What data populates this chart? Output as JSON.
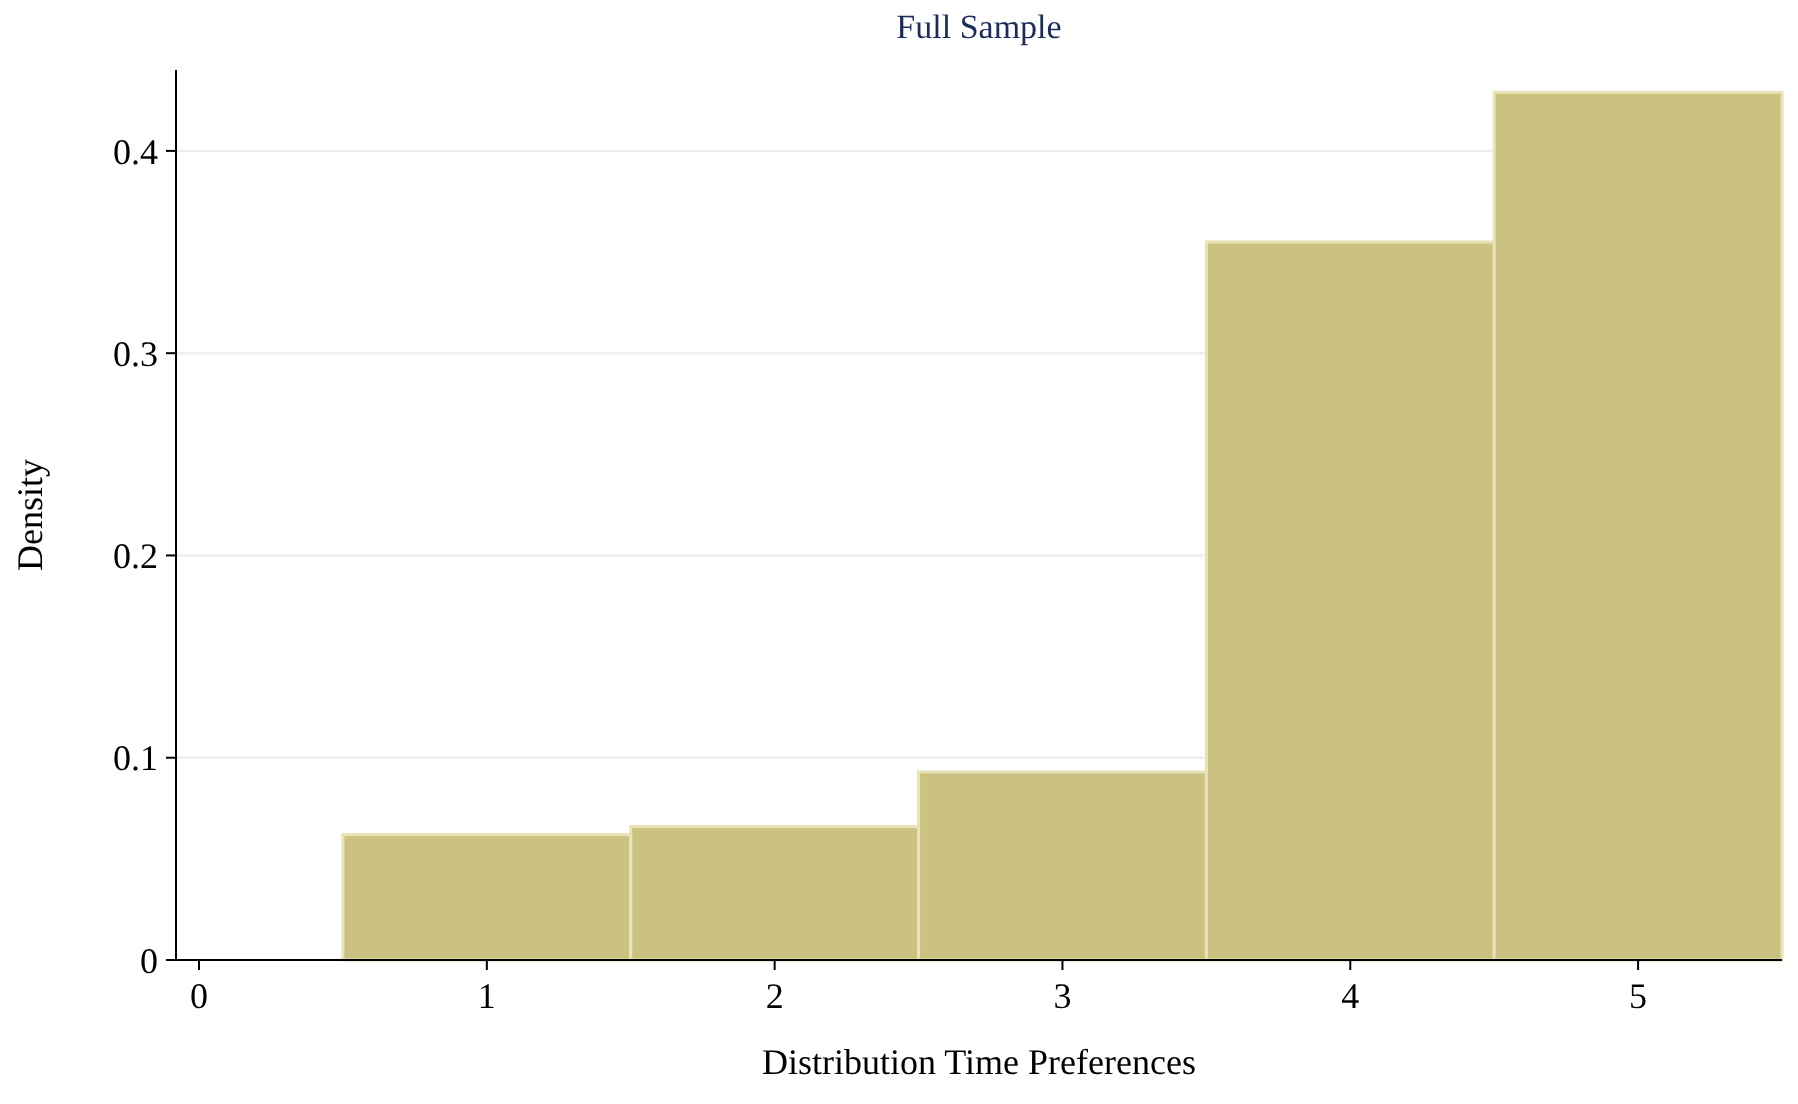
{
  "chart_data": {
    "type": "histogram",
    "title": "Full Sample",
    "xlabel": "Distribution Time Preferences",
    "ylabel": "Density",
    "bins": [
      0.5,
      1.5,
      2.5,
      3.5,
      4.5,
      5.5
    ],
    "values": [
      0.062,
      0.066,
      0.093,
      0.355,
      0.429
    ],
    "color": "#cbc27f",
    "xlim": [
      -0.08,
      5.5
    ],
    "xticks": [
      0,
      1,
      2,
      3,
      4,
      5
    ],
    "ylim": [
      0,
      0.44
    ],
    "yticks": [
      0,
      0.1,
      0.2,
      0.3,
      0.4
    ],
    "grid": "y"
  }
}
